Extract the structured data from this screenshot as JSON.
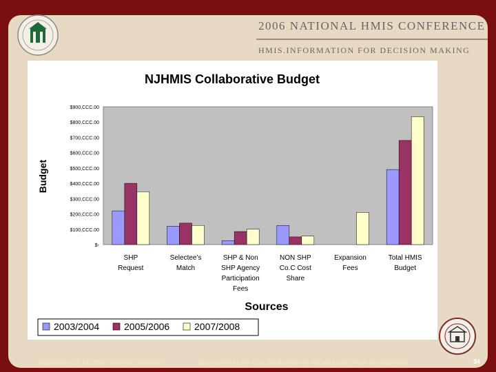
{
  "header": {
    "conference_title": "2006 NATIONAL HMIS CONFERENCE",
    "conference_subtitle": "HMIS.INFORMATION FOR DECISION MAKING"
  },
  "footer": {
    "event": "September 18-19, 2006 - Denver, Colorado",
    "sponsor": "Sponsored by the U.S. Department of Housing and Urban Development",
    "page_number": "34"
  },
  "chart_data": {
    "type": "bar",
    "title": "NJHMIS Collaborative Budget",
    "xlabel": "Sources",
    "ylabel": "Budget",
    "ylim": [
      0,
      900000
    ],
    "ytick_labels": [
      "$-",
      "$100,CCC.00",
      "$200,CCC.00",
      "$300,CCC.00",
      "$400,CCC.00",
      "$500,CCC.00",
      "$600,CCC.00",
      "$700,CCC.00",
      "$800,CCC.00",
      "$900,CCC.00"
    ],
    "categories": [
      [
        "SHP",
        "Request"
      ],
      [
        "Selectee's",
        "Match"
      ],
      [
        "SHP & Non",
        "SHP Agency",
        "Participation",
        "Fees"
      ],
      [
        "NON SHP",
        "Co.C Cost",
        "Share"
      ],
      [
        "Expansion",
        "Fees"
      ],
      [
        "Total HMIS",
        "Budget"
      ]
    ],
    "series": [
      {
        "name": "2003/2004",
        "color": "#9999ff",
        "values": [
          220000,
          120000,
          25000,
          125000,
          0,
          490000
        ]
      },
      {
        "name": "2005/2006",
        "color": "#993366",
        "values": [
          400000,
          140000,
          85000,
          50000,
          0,
          680000
        ]
      },
      {
        "name": "2007/2008",
        "color": "#ffffcc",
        "values": [
          345000,
          125000,
          100000,
          55000,
          210000,
          835000
        ]
      }
    ],
    "grid": false,
    "legend_position": "bottom"
  }
}
